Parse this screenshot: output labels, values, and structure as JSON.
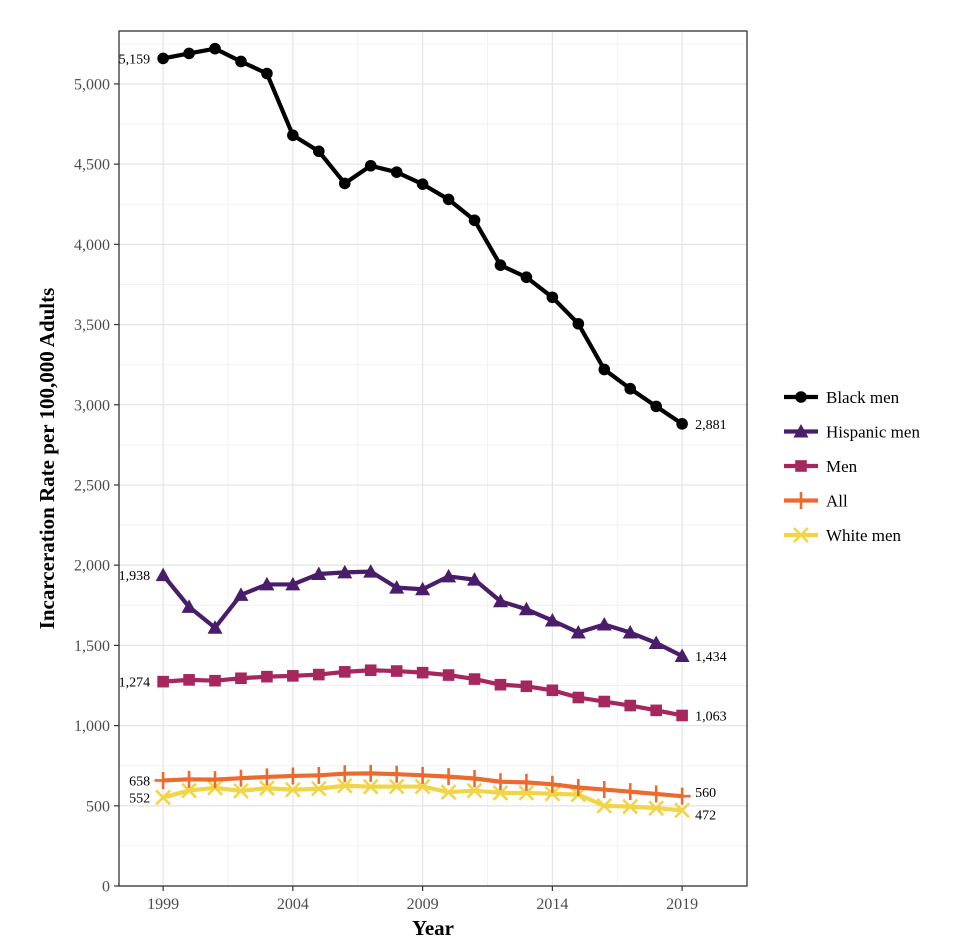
{
  "chart_data": {
    "type": "line",
    "xlabel": "Year",
    "ylabel": "Incarceration Rate per 100,000 Adults",
    "xlim": [
      1997.3,
      2021.5
    ],
    "ylim": [
      0,
      5330
    ],
    "x_ticks": [
      1999,
      2004,
      2009,
      2014,
      2019
    ],
    "y_ticks": [
      0,
      500,
      1000,
      1500,
      2000,
      2500,
      3000,
      3500,
      4000,
      4500,
      5000
    ],
    "y_tick_labels": [
      "0",
      "500",
      "1,000",
      "1,500",
      "2,000",
      "2,500",
      "3,000",
      "3,500",
      "4,000",
      "4,500",
      "5,000"
    ],
    "grid": true,
    "legend_position": "right",
    "x": [
      1999,
      2000,
      2001,
      2002,
      2003,
      2004,
      2005,
      2006,
      2007,
      2008,
      2009,
      2010,
      2011,
      2012,
      2013,
      2014,
      2015,
      2016,
      2017,
      2018,
      2019
    ],
    "series": [
      {
        "name": "Black men",
        "color": "#000000",
        "marker": "circle",
        "values": [
          5159,
          5190,
          5220,
          5140,
          5065,
          4680,
          4580,
          4380,
          4490,
          4450,
          4375,
          4280,
          4150,
          3870,
          3795,
          3670,
          3505,
          3220,
          3100,
          2990,
          2881
        ],
        "start_label": "5,159",
        "end_label": "2,881"
      },
      {
        "name": "Hispanic men",
        "color": "#4a1d6a",
        "marker": "triangle",
        "values": [
          1938,
          1740,
          1610,
          1815,
          1880,
          1880,
          1945,
          1955,
          1960,
          1860,
          1850,
          1930,
          1910,
          1775,
          1725,
          1655,
          1580,
          1630,
          1580,
          1515,
          1434
        ],
        "start_label": "1,938",
        "end_label": "1,434"
      },
      {
        "name": "Men",
        "color": "#a5275d",
        "marker": "square",
        "values": [
          1274,
          1285,
          1280,
          1295,
          1305,
          1310,
          1318,
          1335,
          1345,
          1340,
          1330,
          1315,
          1290,
          1255,
          1245,
          1220,
          1175,
          1150,
          1125,
          1095,
          1063
        ],
        "start_label": "1,274",
        "end_label": "1,063"
      },
      {
        "name": "All",
        "color": "#ec6a2d",
        "marker": "plus",
        "values": [
          658,
          665,
          663,
          672,
          680,
          686,
          690,
          700,
          702,
          697,
          690,
          682,
          670,
          650,
          646,
          634,
          614,
          601,
          588,
          574,
          560
        ],
        "start_label": "658",
        "end_label": "560"
      },
      {
        "name": "White men",
        "color": "#f2d546",
        "marker": "cross",
        "values": [
          552,
          595,
          612,
          593,
          610,
          600,
          607,
          625,
          619,
          620,
          620,
          585,
          595,
          580,
          580,
          575,
          570,
          500,
          495,
          485,
          472
        ],
        "start_label": "552",
        "end_label": "472"
      }
    ]
  }
}
